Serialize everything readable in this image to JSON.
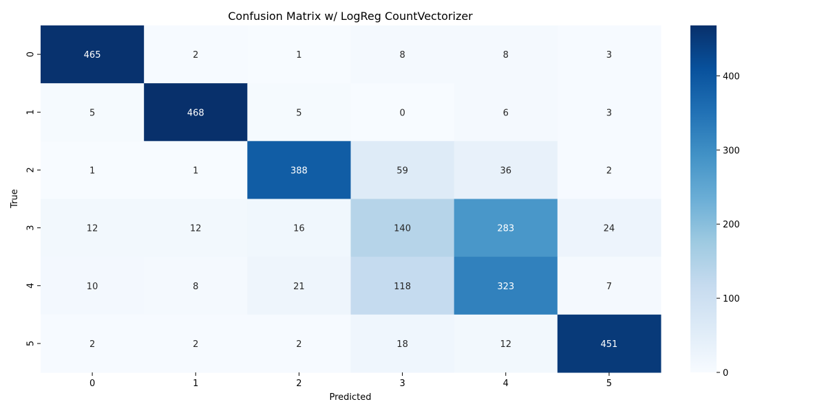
{
  "chart_data": {
    "type": "heatmap",
    "title": "Confusion Matrix w/ LogReg CountVectorizer",
    "xlabel": "Predicted",
    "ylabel": "True",
    "x_categories": [
      "0",
      "1",
      "2",
      "3",
      "4",
      "5"
    ],
    "y_categories": [
      "0",
      "1",
      "2",
      "3",
      "4",
      "5"
    ],
    "values": [
      [
        465,
        2,
        1,
        8,
        8,
        3
      ],
      [
        5,
        468,
        5,
        0,
        6,
        3
      ],
      [
        1,
        1,
        388,
        59,
        36,
        2
      ],
      [
        12,
        12,
        16,
        140,
        283,
        24
      ],
      [
        10,
        8,
        21,
        118,
        323,
        7
      ],
      [
        2,
        2,
        2,
        18,
        12,
        451
      ]
    ],
    "colormap": "Blues",
    "color_range": [
      0,
      468
    ],
    "colorbar_ticks": [
      0,
      100,
      200,
      300,
      400
    ],
    "grid": false,
    "legend_position": "right"
  },
  "colors": {
    "low": "#f7fbff",
    "high": "#08306b",
    "text_dark": "#262626",
    "text_light": "#ffffff"
  }
}
